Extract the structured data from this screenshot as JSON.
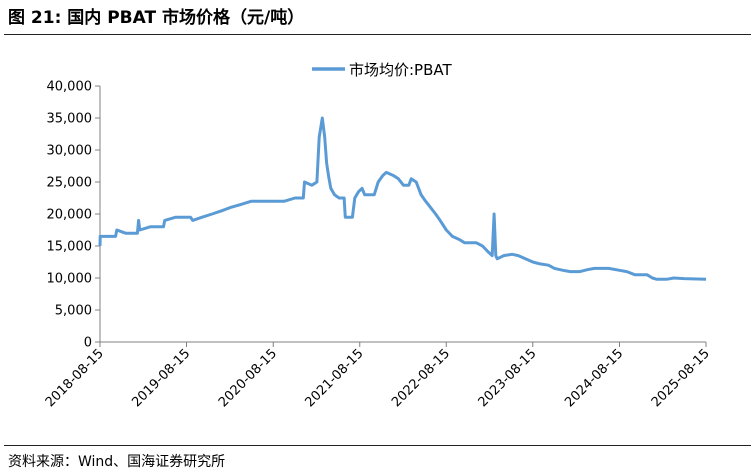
{
  "header": {
    "figure_title": "图 21: 国内 PBAT 市场价格（元/吨）"
  },
  "footer": {
    "source": "资料来源：Wind、国海证券研究所"
  },
  "colors": {
    "series": "#5B9BD5",
    "axis": "#808080",
    "text": "#000000"
  },
  "chart_data": {
    "type": "line",
    "title": "",
    "xlabel": "",
    "ylabel": "",
    "legend_position": "top-center",
    "grid": false,
    "xlim": [
      "2018-08-15",
      "2025-08-15"
    ],
    "ylim": [
      0,
      40000
    ],
    "x_tick_labels": [
      "2018-08-15",
      "2019-08-15",
      "2020-08-15",
      "2021-08-15",
      "2022-08-15",
      "2023-08-15",
      "2024-08-15",
      "2025-08-15"
    ],
    "y_tick_labels": [
      "0",
      "5,000",
      "10,000",
      "15,000",
      "20,000",
      "25,000",
      "30,000",
      "35,000",
      "40,000"
    ],
    "y_ticks": [
      0,
      5000,
      10000,
      15000,
      20000,
      25000,
      30000,
      35000,
      40000
    ],
    "series": [
      {
        "name": "市场均价:PBAT",
        "points": [
          [
            "2018-08-15",
            15000
          ],
          [
            "2018-08-16",
            16500
          ],
          [
            "2018-10-20",
            16500
          ],
          [
            "2018-10-25",
            17500
          ],
          [
            "2018-12-01",
            17000
          ],
          [
            "2019-01-20",
            17000
          ],
          [
            "2019-01-25",
            19000
          ],
          [
            "2019-01-30",
            17500
          ],
          [
            "2019-03-15",
            18000
          ],
          [
            "2019-05-10",
            18000
          ],
          [
            "2019-05-15",
            19000
          ],
          [
            "2019-07-01",
            19500
          ],
          [
            "2019-09-01",
            19500
          ],
          [
            "2019-09-10",
            19000
          ],
          [
            "2019-10-20",
            19500
          ],
          [
            "2019-12-01",
            20000
          ],
          [
            "2020-01-10",
            20500
          ],
          [
            "2020-02-15",
            21000
          ],
          [
            "2020-04-01",
            21500
          ],
          [
            "2020-05-15",
            22000
          ],
          [
            "2020-07-01",
            22000
          ],
          [
            "2020-08-01",
            22000
          ],
          [
            "2020-10-01",
            22000
          ],
          [
            "2020-11-15",
            22500
          ],
          [
            "2020-12-20",
            22500
          ],
          [
            "2020-12-25",
            25000
          ],
          [
            "2021-01-25",
            24500
          ],
          [
            "2021-02-15",
            25000
          ],
          [
            "2021-02-25",
            32000
          ],
          [
            "2021-03-10",
            35000
          ],
          [
            "2021-03-20",
            32000
          ],
          [
            "2021-03-28",
            28000
          ],
          [
            "2021-04-05",
            26000
          ],
          [
            "2021-04-15",
            24000
          ],
          [
            "2021-05-01",
            23000
          ],
          [
            "2021-05-20",
            22500
          ],
          [
            "2021-06-10",
            22500
          ],
          [
            "2021-06-15",
            19500
          ],
          [
            "2021-07-15",
            19500
          ],
          [
            "2021-07-25",
            22500
          ],
          [
            "2021-08-10",
            23500
          ],
          [
            "2021-08-25",
            24000
          ],
          [
            "2021-09-05",
            23000
          ],
          [
            "2021-10-15",
            23000
          ],
          [
            "2021-11-01",
            25000
          ],
          [
            "2021-11-20",
            26000
          ],
          [
            "2021-12-05",
            26500
          ],
          [
            "2022-01-05",
            26000
          ],
          [
            "2022-01-25",
            25500
          ],
          [
            "2022-02-15",
            24500
          ],
          [
            "2022-03-10",
            24500
          ],
          [
            "2022-03-20",
            25500
          ],
          [
            "2022-04-10",
            25000
          ],
          [
            "2022-05-01",
            23000
          ],
          [
            "2022-05-20",
            22000
          ],
          [
            "2022-06-10",
            21000
          ],
          [
            "2022-07-01",
            20000
          ],
          [
            "2022-07-20",
            19000
          ],
          [
            "2022-08-15",
            17500
          ],
          [
            "2022-09-10",
            16500
          ],
          [
            "2022-10-10",
            16000
          ],
          [
            "2022-11-01",
            15500
          ],
          [
            "2022-12-20",
            15500
          ],
          [
            "2023-01-15",
            15000
          ],
          [
            "2023-02-10",
            14000
          ],
          [
            "2023-02-25",
            13500
          ],
          [
            "2023-03-05",
            20000
          ],
          [
            "2023-03-12",
            13500
          ],
          [
            "2023-03-18",
            13000
          ],
          [
            "2023-04-15",
            13500
          ],
          [
            "2023-05-20",
            13700
          ],
          [
            "2023-06-15",
            13500
          ],
          [
            "2023-07-15",
            13000
          ],
          [
            "2023-08-15",
            12500
          ],
          [
            "2023-09-15",
            12200
          ],
          [
            "2023-10-20",
            12000
          ],
          [
            "2023-11-15",
            11500
          ],
          [
            "2023-12-20",
            11200
          ],
          [
            "2024-01-20",
            11000
          ],
          [
            "2024-03-01",
            11000
          ],
          [
            "2024-04-01",
            11300
          ],
          [
            "2024-05-01",
            11500
          ],
          [
            "2024-07-01",
            11500
          ],
          [
            "2024-08-15",
            11200
          ],
          [
            "2024-09-15",
            11000
          ],
          [
            "2024-10-20",
            10500
          ],
          [
            "2024-12-10",
            10500
          ],
          [
            "2025-01-01",
            10000
          ],
          [
            "2025-01-20",
            9800
          ],
          [
            "2025-03-01",
            9800
          ],
          [
            "2025-04-01",
            10000
          ],
          [
            "2025-05-15",
            9900
          ],
          [
            "2025-08-15",
            9800
          ]
        ]
      }
    ]
  }
}
